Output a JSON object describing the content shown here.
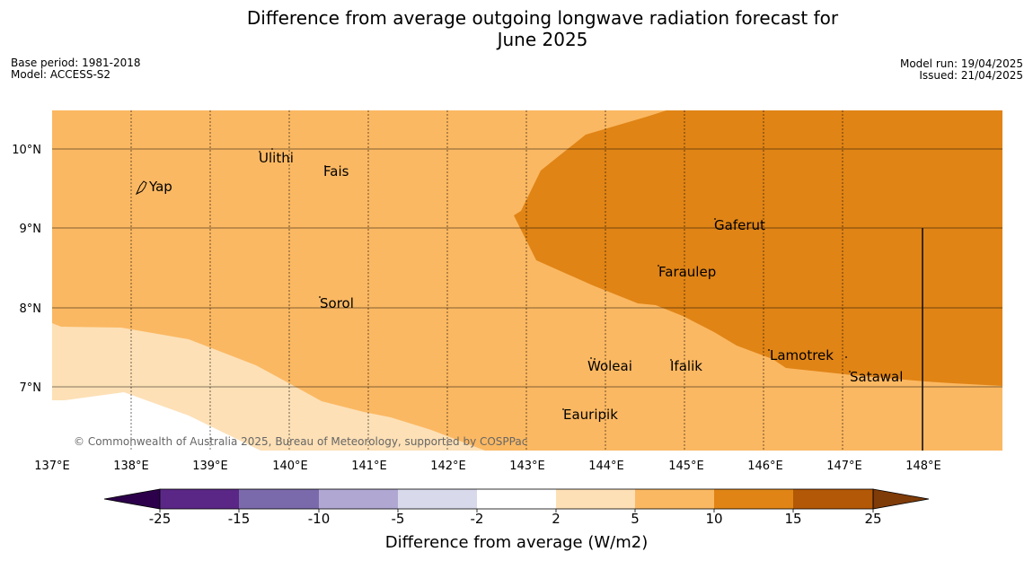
{
  "title": {
    "line1": "Difference from average outgoing longwave radiation forecast for",
    "line2": "June 2025"
  },
  "meta_left": {
    "base_period": "Base period: 1981-2018",
    "model": "Model: ACCESS-S2"
  },
  "meta_right": {
    "model_run": "Model run: 19/04/2025",
    "issued": "Issued: 21/04/2025"
  },
  "map": {
    "lat_ticks": [
      "10°N",
      "9°N",
      "8°N",
      "7°N"
    ],
    "lon_ticks": [
      "137°E",
      "138°E",
      "139°E",
      "140°E",
      "141°E",
      "142°E",
      "143°E",
      "144°E",
      "145°E",
      "146°E",
      "147°E",
      "148°E"
    ],
    "places": [
      "Yap",
      "Ulithi",
      "Fais",
      "Gaferut",
      "Faraulep",
      "Sorol",
      "Woleai",
      "Ifalik",
      "Lamotrek",
      "Satawal",
      "Eauripik"
    ],
    "copyright": "© Commonwealth of Australia 2025, Bureau of Meteorology, supported by COSPPac",
    "colors": {
      "band_2_5": "#fde0b6",
      "band_5_10": "#fbb862",
      "band_10_15": "#e08416",
      "band_m2_2": "#ffffff"
    }
  },
  "legend": {
    "ticks": [
      "-25",
      "-15",
      "-10",
      "-5",
      "-2",
      "2",
      "5",
      "10",
      "15",
      "25"
    ],
    "label": "Difference from average (W/m2)",
    "colors": [
      "#5a2786",
      "#7b6aab",
      "#b0a8d2",
      "#d9d9ec",
      "#ffffff",
      "#fde0b6",
      "#fbb862",
      "#e08416",
      "#b35806",
      "#7f3b08",
      "#2d004b"
    ]
  }
}
